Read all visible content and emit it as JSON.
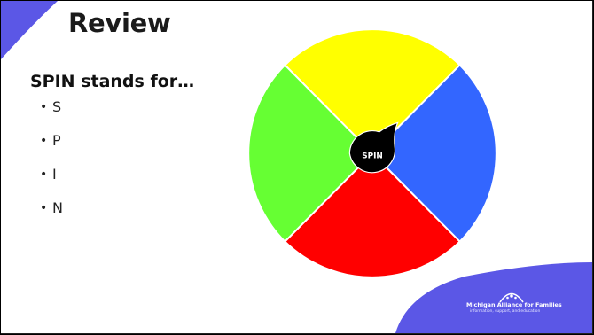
{
  "slide": {
    "title": "Review",
    "subtitle": "SPIN stands for…",
    "bullets": [
      "S",
      "P",
      "I",
      "N"
    ],
    "bullet_glyph": "•"
  },
  "wheel": {
    "center_label": "SPIN",
    "segments": [
      {
        "name": "top",
        "color": "#ffff00"
      },
      {
        "name": "right",
        "color": "#3366ff"
      },
      {
        "name": "bottom",
        "color": "#ff0000"
      },
      {
        "name": "left",
        "color": "#66ff33"
      }
    ],
    "center_color": "#000000"
  },
  "logo": {
    "name": "Michigan Alliance for Families",
    "tagline": "information, support, and education"
  },
  "colors": {
    "accent": "#5b57e6",
    "background": "#ffffff"
  }
}
